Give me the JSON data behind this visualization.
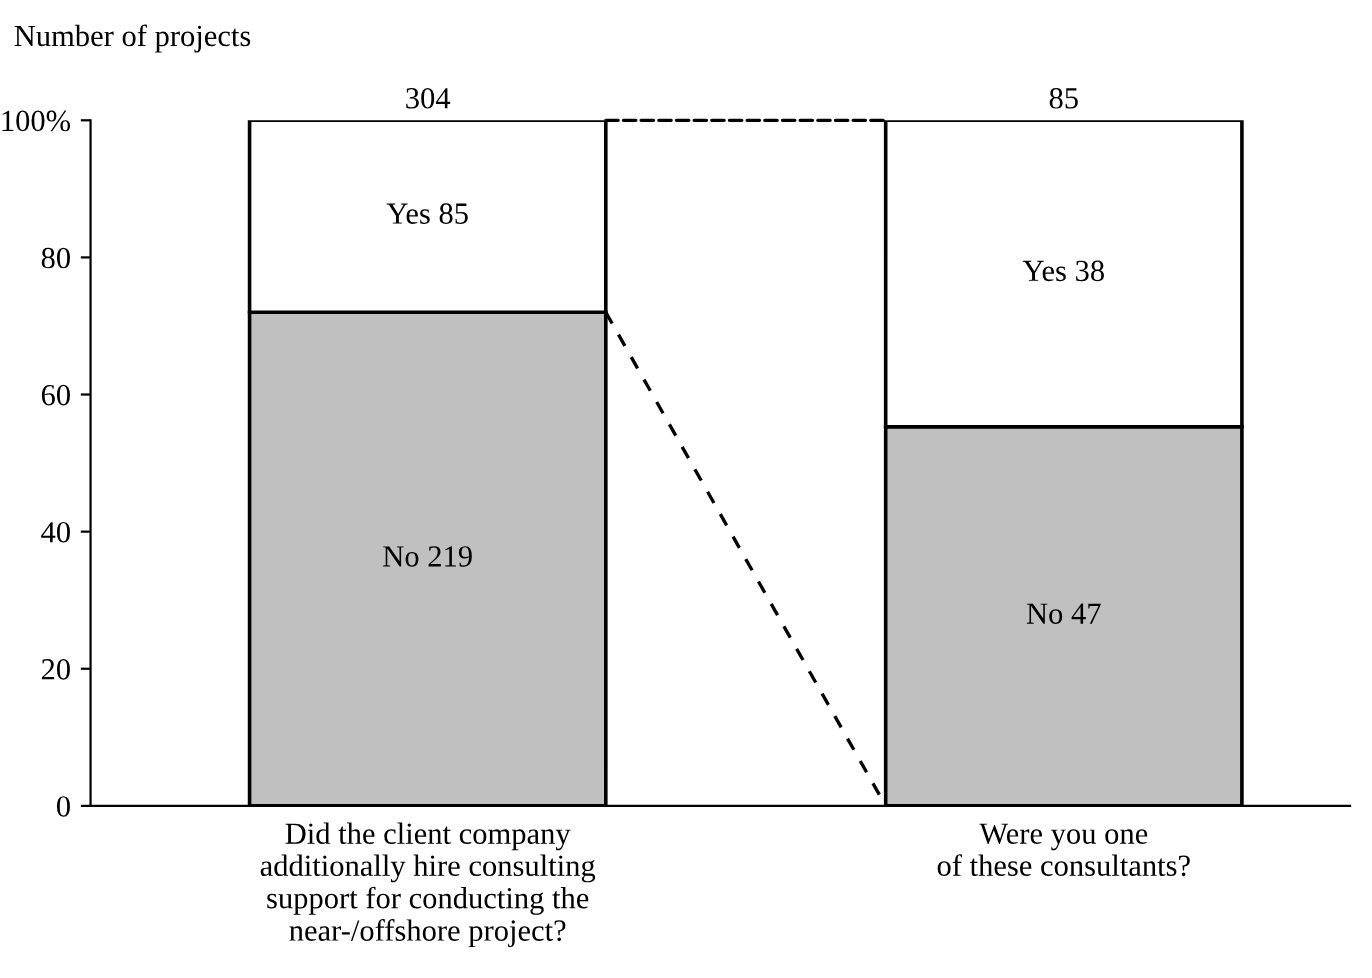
{
  "chart_data": {
    "type": "bar",
    "stacked": true,
    "ylabel": "Number of projects",
    "categories": [
      "Did the client company\nadditionally hire consulting\nsupport for conducting the\nnear-/offshore project?",
      "Were you one\nof these consultants?"
    ],
    "series": [
      {
        "color": "#c0c0c0",
        "values": [
          72.0,
          55.3
        ],
        "value_labels": [
          "No 219",
          "No 47"
        ]
      },
      {
        "color": "#ffffff",
        "values": [
          28.0,
          44.7
        ],
        "value_labels": [
          "Yes 85",
          "Yes 38"
        ]
      }
    ],
    "annotations": [
      {
        "text": "304",
        "x": "Did the client company\nadditionally hire consulting\nsupport for conducting the\nnear-/offshore project?",
        "y": 100
      },
      {
        "text": "85",
        "x": "Were you one\nof these consultants?",
        "y": 100
      }
    ],
    "ylim": [
      0,
      100
    ],
    "yticks": [
      0,
      20,
      40,
      60,
      80,
      {
        "value": 100,
        "label": "100%"
      }
    ],
    "grid": false,
    "legend": false
  }
}
